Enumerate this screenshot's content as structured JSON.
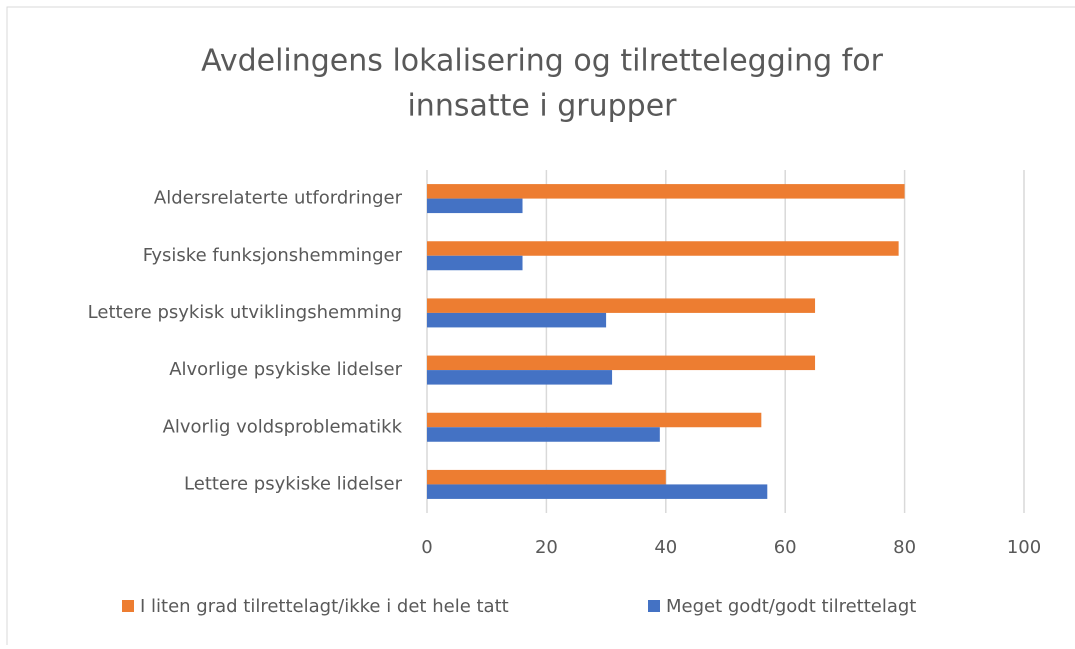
{
  "chart_data": {
    "type": "bar",
    "orientation": "horizontal",
    "title": [
      "Avdelingens lokalisering og tilrettelegging for",
      "innsatte i grupper"
    ],
    "categories": [
      "Aldersrelaterte utfordringer",
      "Fysiske funksjonshemminger",
      "Lettere psykisk utviklingshemming",
      "Alvorlige psykiske lidelser",
      "Alvorlig voldsproblematikk",
      "Lettere psykiske lidelser"
    ],
    "series": [
      {
        "name": "I liten grad tilrettelagt/ikke i det hele tatt",
        "color": "#ed7d31",
        "values": [
          80,
          79,
          65,
          65,
          56,
          40
        ]
      },
      {
        "name": "Meget godt/godt tilrettelagt",
        "color": "#4472c4",
        "values": [
          16,
          16,
          30,
          31,
          39,
          57
        ]
      }
    ],
    "xlim": [
      0,
      100
    ],
    "xticks": [
      0,
      20,
      40,
      60,
      80,
      100
    ],
    "grid": true,
    "legend": "bottom"
  }
}
